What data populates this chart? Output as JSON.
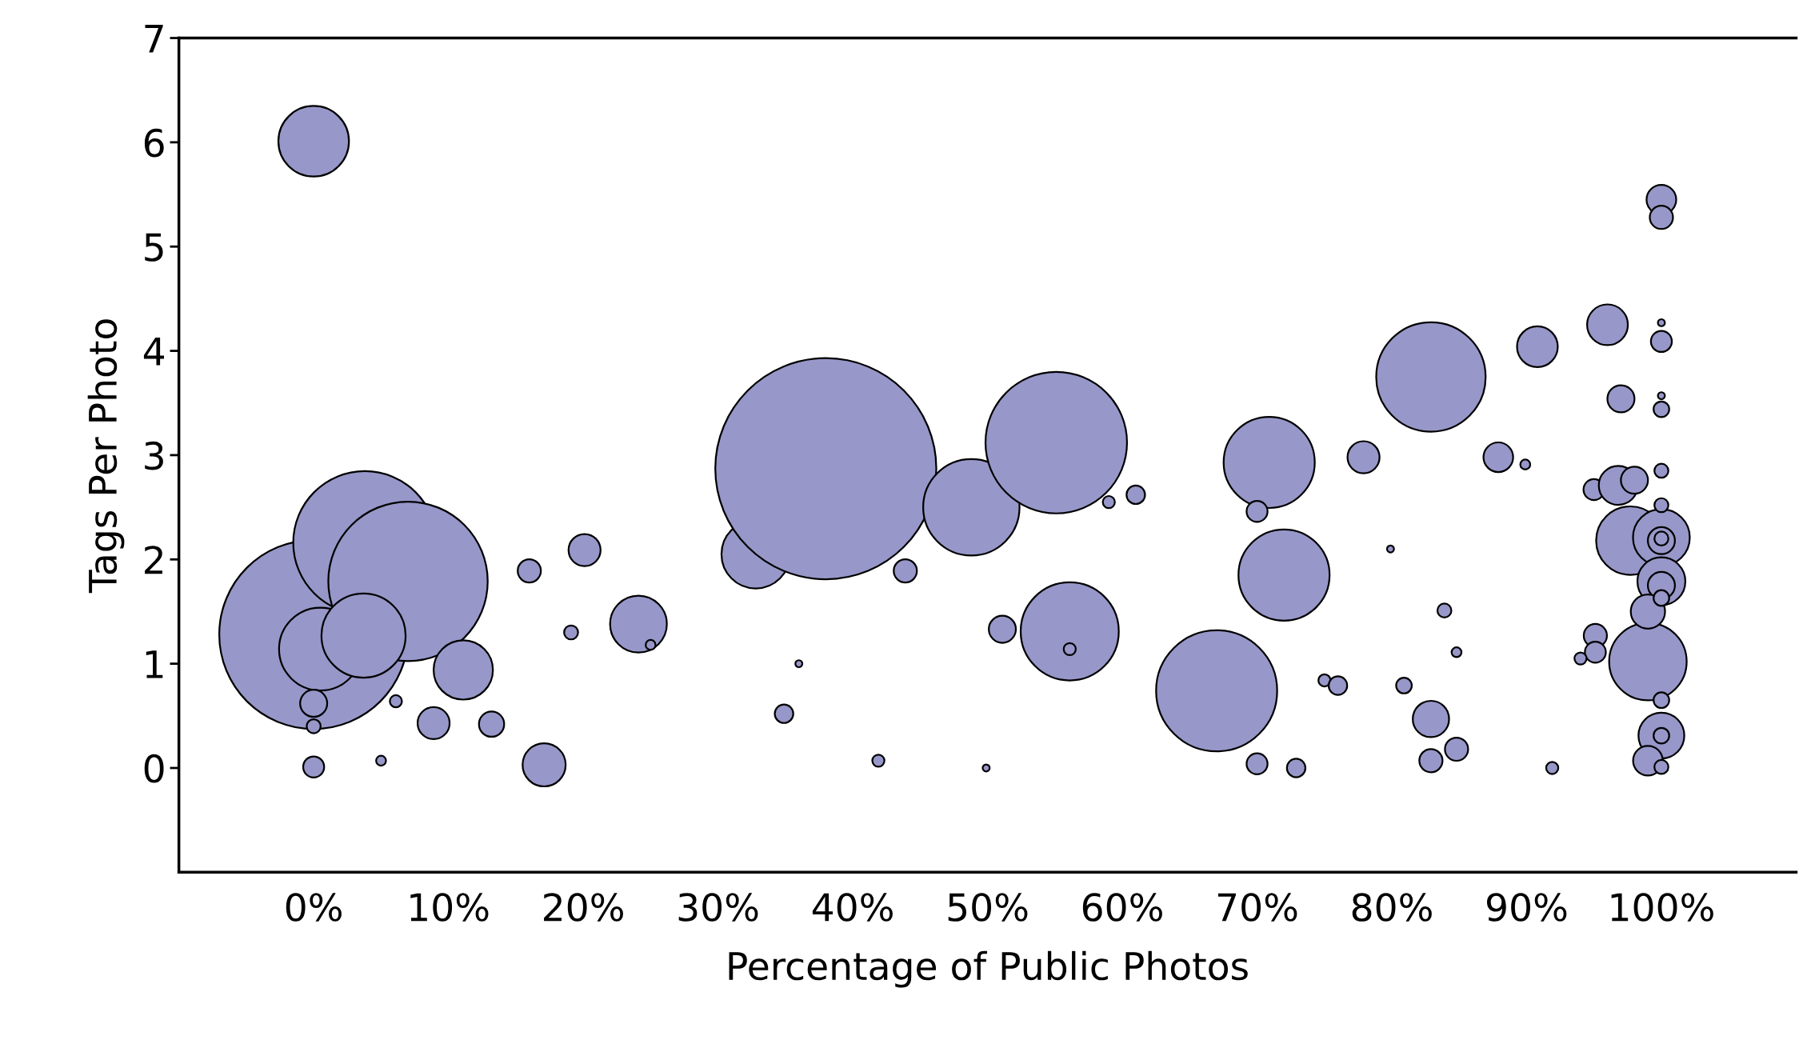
{
  "chart_data": {
    "type": "bubble",
    "xlabel": "Percentage of Public Photos",
    "ylabel": "Tags Per Photo",
    "xlim": [
      -10,
      110
    ],
    "ylim": [
      -1,
      7
    ],
    "xticks": [
      {
        "value": 0,
        "label": "0%"
      },
      {
        "value": 10,
        "label": "10%"
      },
      {
        "value": 20,
        "label": "20%"
      },
      {
        "value": 30,
        "label": "30%"
      },
      {
        "value": 40,
        "label": "40%"
      },
      {
        "value": 50,
        "label": "50%"
      },
      {
        "value": 60,
        "label": "60%"
      },
      {
        "value": 70,
        "label": "70%"
      },
      {
        "value": 80,
        "label": "80%"
      },
      {
        "value": 90,
        "label": "90%"
      },
      {
        "value": 100,
        "label": "100%"
      }
    ],
    "yticks": [
      0,
      1,
      2,
      3,
      4,
      5,
      6,
      7
    ],
    "grid": false,
    "series": [
      {
        "color": "#9797c9",
        "x": [
          0,
          0,
          3.8,
          7,
          0.5,
          3.7,
          11.1,
          0,
          0,
          0,
          6.1,
          5,
          8.9,
          13.2,
          16,
          20.1,
          19.1,
          17.1,
          24.1,
          25,
          32.8,
          38,
          36,
          34.9,
          43.9,
          41.9,
          48.8,
          55.1,
          49.9,
          51.1,
          56.1,
          56.1,
          59,
          61,
          67,
          70.9,
          70,
          72,
          70,
          72.9,
          75,
          76,
          77.9,
          79.9,
          80.9,
          82.9,
          82.9,
          82.9,
          83.9,
          84.8,
          84.8,
          87.9,
          89.9,
          90.8,
          91.9,
          96,
          97,
          95,
          96.8,
          98,
          97.7,
          100,
          100,
          100,
          99,
          100,
          100,
          99,
          95.1,
          95.1,
          94,
          100,
          100,
          100,
          100,
          100,
          100,
          100,
          100,
          100,
          100,
          99,
          100,
          100,
          100
        ],
        "values": [
          6.01,
          1.28,
          2.16,
          1.79,
          1.14,
          1.27,
          0.94,
          0.62,
          0.4,
          0.01,
          0.64,
          0.07,
          0.43,
          0.42,
          1.89,
          2.09,
          1.3,
          0.03,
          1.38,
          1.18,
          2.05,
          2.87,
          1.0,
          0.52,
          1.89,
          0.07,
          2.5,
          3.12,
          0,
          1.33,
          1.31,
          1.14,
          2.55,
          2.62,
          0.74,
          2.93,
          2.46,
          1.85,
          0.04,
          0,
          0.84,
          0.79,
          2.98,
          2.1,
          0.79,
          3.75,
          0.47,
          0.07,
          1.51,
          1.11,
          0.18,
          2.98,
          2.91,
          4.04,
          0,
          4.25,
          3.54,
          2.67,
          2.71,
          2.76,
          2.18,
          2.21,
          2.18,
          2.2,
          1.02,
          1.79,
          1.75,
          1.5,
          1.27,
          1.11,
          1.05,
          5.45,
          5.28,
          4.09,
          4.27,
          3.44,
          3.57,
          2.85,
          2.52,
          0.31,
          0.31,
          0.07,
          0.01,
          0.65,
          1.63
        ],
        "sizes": [
          0.102,
          0.73,
          0.42,
          0.52,
          0.14,
          0.145,
          0.072,
          0.015,
          0.004,
          0.009,
          0.003,
          0.002,
          0.021,
          0.013,
          0.011,
          0.021,
          0.004,
          0.038,
          0.066,
          0.002,
          0.096,
          1,
          0.001,
          0.007,
          0.011,
          0.003,
          0.19,
          0.41,
          0.001,
          0.015,
          0.197,
          0.003,
          0.003,
          0.007,
          0.3,
          0.17,
          0.009,
          0.17,
          0.009,
          0.007,
          0.003,
          0.007,
          0.021,
          0.001,
          0.005,
          0.245,
          0.027,
          0.011,
          0.004,
          0.002,
          0.011,
          0.018,
          0.002,
          0.034,
          0.003,
          0.034,
          0.015,
          0.009,
          0.031,
          0.015,
          0.096,
          0.066,
          0.015,
          0.004,
          0.123,
          0.047,
          0.015,
          0.024,
          0.011,
          0.009,
          0.003,
          0.018,
          0.011,
          0.009,
          0.001,
          0.005,
          0.001,
          0.004,
          0.004,
          0.043,
          0.005,
          0.018,
          0.004,
          0.005,
          0.005
        ]
      }
    ]
  }
}
